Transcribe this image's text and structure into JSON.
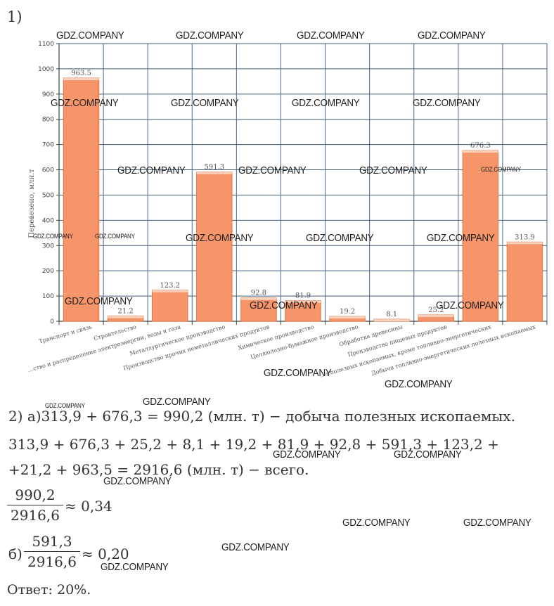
{
  "part1_label": "1)",
  "chart_data": {
    "type": "bar",
    "ylabel": "Перевезено, млн.т",
    "ylim": [
      0,
      1100
    ],
    "yticks": [
      0,
      100,
      200,
      300,
      400,
      500,
      600,
      700,
      800,
      900,
      1000,
      1100
    ],
    "grid": true,
    "bar_color": "#f6956a",
    "categories": [
      "Транспорт и связь",
      "Строительство",
      "...ство и распределение электроэнергии, воды и газа",
      "Металлургическое производство",
      "Производство прочих неметаллических продуктов",
      "Химическое производство",
      "Целлюлозно-бумажное производство",
      "Обработка древесины",
      "Производство пищевых продуктов",
      "...а полезных ископаемых, кроме топливно-энергетических",
      "Добыча топливно-энергетических полезных ископаемых"
    ],
    "values": [
      963.5,
      21.2,
      123.2,
      591.3,
      92.8,
      81.9,
      19.2,
      8.1,
      25.2,
      676.3,
      313.9
    ],
    "value_labels": [
      "963.5",
      "21.2",
      "123.2",
      "591.3",
      "92.8",
      "81.9",
      "19.2",
      "8.1",
      "25.2",
      "676.3",
      "313.9"
    ]
  },
  "watermark_text": "GDZ.COMPANY",
  "solution": {
    "line_a": "2) а)313,9 + 676,3 = 990,2 (млн. т) − добыча полезных ископаемых.",
    "line_sum1": "313,9 + 676,3 + 25,2 + 8,1 + 19,2 + 81,9 + 92,8 + 591,3 + 123,2 +",
    "line_sum2": "+21,2 + 963,5 = 2916,6 (млн. т) − всего.",
    "frac1_num": "990,2",
    "frac1_den": "2916,6",
    "frac1_result": "≈ 0,34",
    "b_label": "б)",
    "frac2_num": "591,3",
    "frac2_den": "2916,6",
    "frac2_result": "≈ 0,20",
    "answer": "Ответ: 20%."
  }
}
